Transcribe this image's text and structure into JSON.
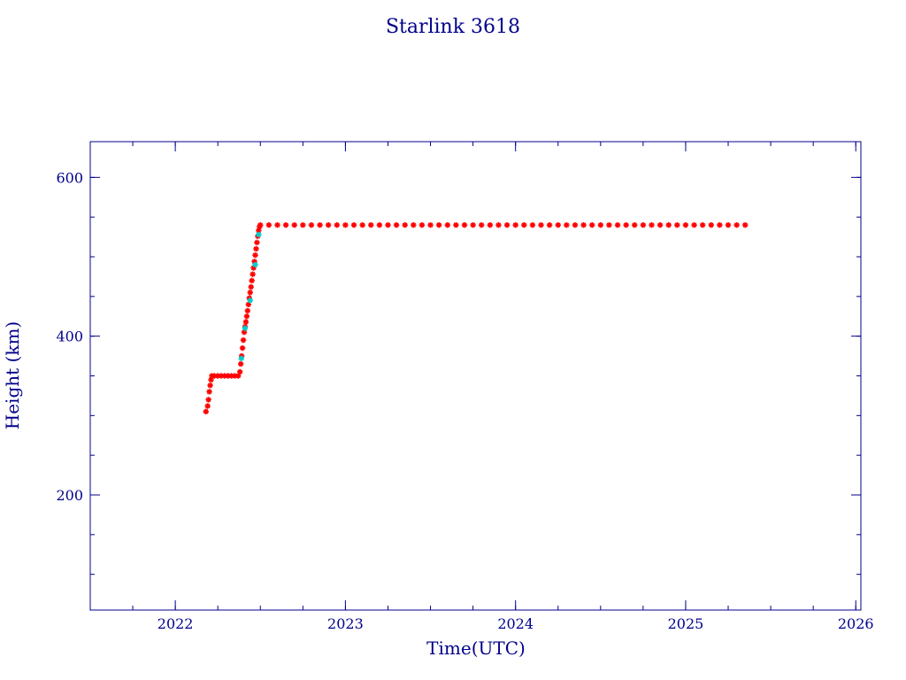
{
  "colors": {
    "axis": "#00008b",
    "text": "#00008b",
    "series_main": "#ff0000",
    "series_alt": "#00cccc",
    "background": "#ffffff"
  },
  "chart_data": {
    "type": "scatter",
    "title": "Starlink 3618",
    "xlabel": "Time(UTC)",
    "ylabel": "Height (km)",
    "xlim": [
      2021.5,
      2026.03
    ],
    "ylim": [
      55,
      645
    ],
    "x_ticks": [
      {
        "value": 2022,
        "label": "2022"
      },
      {
        "value": 2023,
        "label": "2023"
      },
      {
        "value": 2024,
        "label": "2024"
      },
      {
        "value": 2025,
        "label": "2025"
      },
      {
        "value": 2026,
        "label": "2026"
      }
    ],
    "x_minor_step": 0.25,
    "y_ticks": [
      {
        "value": 200,
        "label": "200"
      },
      {
        "value": 400,
        "label": "400"
      },
      {
        "value": 600,
        "label": "600"
      }
    ],
    "y_minor_step": 50,
    "grid": false,
    "series": [
      {
        "color": "#ff0000",
        "marker": "asterisk",
        "points": [
          [
            2022.18,
            305
          ],
          [
            2022.19,
            312
          ],
          [
            2022.195,
            320
          ],
          [
            2022.2,
            330
          ],
          [
            2022.205,
            338
          ],
          [
            2022.21,
            345
          ],
          [
            2022.215,
            350
          ],
          [
            2022.23,
            350
          ],
          [
            2022.25,
            350
          ],
          [
            2022.27,
            350
          ],
          [
            2022.29,
            350
          ],
          [
            2022.31,
            350
          ],
          [
            2022.33,
            350
          ],
          [
            2022.35,
            350
          ],
          [
            2022.37,
            350
          ],
          [
            2022.38,
            355
          ],
          [
            2022.385,
            365
          ],
          [
            2022.39,
            375
          ],
          [
            2022.395,
            385
          ],
          [
            2022.4,
            395
          ],
          [
            2022.405,
            405
          ],
          [
            2022.41,
            412
          ],
          [
            2022.415,
            418
          ],
          [
            2022.42,
            425
          ],
          [
            2022.425,
            432
          ],
          [
            2022.43,
            440
          ],
          [
            2022.435,
            448
          ],
          [
            2022.44,
            455
          ],
          [
            2022.445,
            462
          ],
          [
            2022.45,
            470
          ],
          [
            2022.455,
            478
          ],
          [
            2022.46,
            486
          ],
          [
            2022.465,
            494
          ],
          [
            2022.47,
            502
          ],
          [
            2022.475,
            510
          ],
          [
            2022.48,
            518
          ],
          [
            2022.485,
            526
          ],
          [
            2022.49,
            533
          ],
          [
            2022.495,
            538
          ],
          [
            2022.5,
            540
          ],
          [
            2022.55,
            540
          ],
          [
            2022.6,
            540
          ],
          [
            2022.65,
            540
          ],
          [
            2022.7,
            540
          ],
          [
            2022.75,
            540
          ],
          [
            2022.8,
            540
          ],
          [
            2022.85,
            540
          ],
          [
            2022.9,
            540
          ],
          [
            2022.95,
            540
          ],
          [
            2023.0,
            540
          ],
          [
            2023.05,
            540
          ],
          [
            2023.1,
            540
          ],
          [
            2023.15,
            540
          ],
          [
            2023.2,
            540
          ],
          [
            2023.25,
            540
          ],
          [
            2023.3,
            540
          ],
          [
            2023.35,
            540
          ],
          [
            2023.4,
            540
          ],
          [
            2023.45,
            540
          ],
          [
            2023.5,
            540
          ],
          [
            2023.55,
            540
          ],
          [
            2023.6,
            540
          ],
          [
            2023.65,
            540
          ],
          [
            2023.7,
            540
          ],
          [
            2023.75,
            540
          ],
          [
            2023.8,
            540
          ],
          [
            2023.85,
            540
          ],
          [
            2023.9,
            540
          ],
          [
            2023.95,
            540
          ],
          [
            2024.0,
            540
          ],
          [
            2024.05,
            540
          ],
          [
            2024.1,
            540
          ],
          [
            2024.15,
            540
          ],
          [
            2024.2,
            540
          ],
          [
            2024.25,
            540
          ],
          [
            2024.3,
            540
          ],
          [
            2024.35,
            540
          ],
          [
            2024.4,
            540
          ],
          [
            2024.45,
            540
          ],
          [
            2024.5,
            540
          ],
          [
            2024.55,
            540
          ],
          [
            2024.6,
            540
          ],
          [
            2024.65,
            540
          ],
          [
            2024.7,
            540
          ],
          [
            2024.75,
            540
          ],
          [
            2024.8,
            540
          ],
          [
            2024.85,
            540
          ],
          [
            2024.9,
            540
          ],
          [
            2024.95,
            540
          ],
          [
            2025.0,
            540
          ],
          [
            2025.05,
            540
          ],
          [
            2025.1,
            540
          ],
          [
            2025.15,
            540
          ],
          [
            2025.2,
            540
          ],
          [
            2025.25,
            540
          ],
          [
            2025.3,
            540
          ],
          [
            2025.35,
            540
          ]
        ]
      },
      {
        "color": "#00cccc",
        "marker": "asterisk",
        "points": [
          [
            2022.388,
            372
          ],
          [
            2022.41,
            410
          ],
          [
            2022.44,
            445
          ],
          [
            2022.47,
            490
          ],
          [
            2022.49,
            528
          ]
        ]
      }
    ]
  }
}
